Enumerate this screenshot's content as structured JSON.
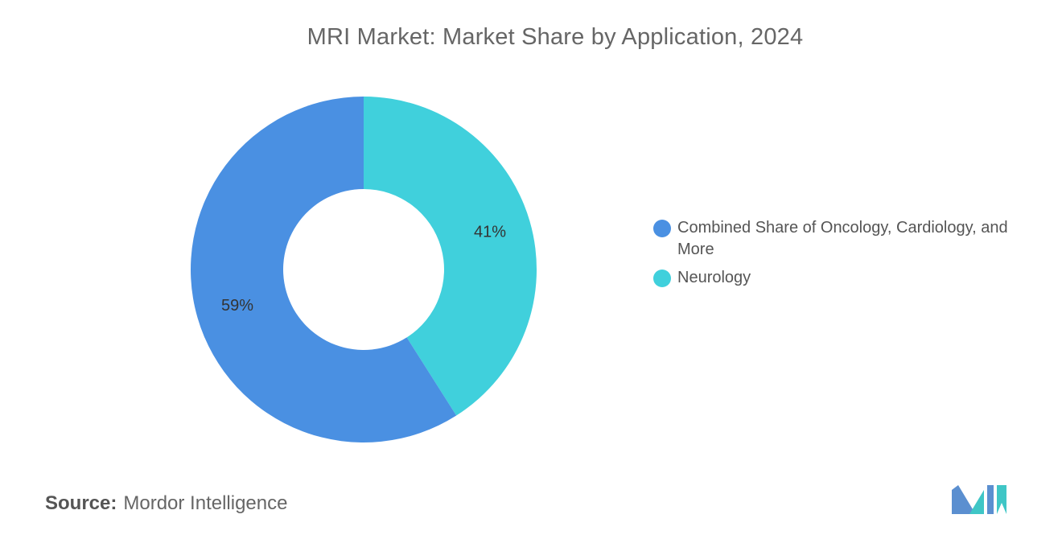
{
  "chart_data": {
    "type": "pie",
    "title": "MRI Market: Market Share by Application, 2024",
    "donut": true,
    "legend_position": "right",
    "slices": [
      {
        "name": "Combined Share of Oncology, Cardiology, and More",
        "value": 59,
        "label": "59%",
        "color": "#4a90e2"
      },
      {
        "name": "Neurology",
        "value": 41,
        "label": "41%",
        "color": "#40d0dc"
      }
    ]
  },
  "source": {
    "label": "Source:",
    "text": "Mordor Intelligence"
  },
  "logo": {
    "name": "mordor-intelligence-logo",
    "colors": [
      "#5b8fd0",
      "#3fc6c6"
    ]
  }
}
